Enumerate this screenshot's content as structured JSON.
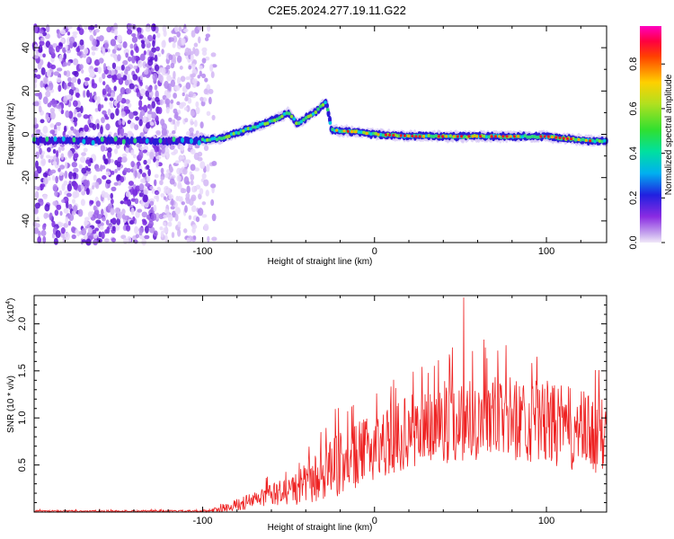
{
  "chart_data": [
    {
      "type": "heatmap",
      "title": "C2E5.2024.277.19.11.G22",
      "xlabel": "Height of straight line (km)",
      "ylabel": "Frequency (Hz)",
      "xlim": [
        -198,
        135
      ],
      "ylim": [
        -50,
        50
      ],
      "xticks": [
        -100,
        0,
        100
      ],
      "xtick_labels": [
        "-100",
        "0",
        "100"
      ],
      "yticks": [
        -40,
        -20,
        0,
        20,
        40
      ],
      "ytick_labels": [
        "-40",
        "-20",
        "0",
        "20",
        "40"
      ],
      "noise_region_x": [
        -198,
        -93
      ],
      "signal_ridge": [
        {
          "x": -105,
          "y": -3
        },
        {
          "x": -90,
          "y": -2
        },
        {
          "x": -75,
          "y": 2
        },
        {
          "x": -60,
          "y": 6
        },
        {
          "x": -50,
          "y": 10
        },
        {
          "x": -45,
          "y": 5
        },
        {
          "x": -35,
          "y": 10
        },
        {
          "x": -28,
          "y": 15
        },
        {
          "x": -25,
          "y": 2
        },
        {
          "x": -10,
          "y": 1
        },
        {
          "x": 0,
          "y": 0
        },
        {
          "x": 25,
          "y": -1
        },
        {
          "x": 50,
          "y": -1
        },
        {
          "x": 75,
          "y": -1
        },
        {
          "x": 100,
          "y": -1
        },
        {
          "x": 125,
          "y": -3
        },
        {
          "x": 135,
          "y": -3
        }
      ],
      "colorbar": {
        "label": "Normalized spectral amplitude",
        "range": [
          0,
          0.97
        ],
        "ticks": [
          0.0,
          0.2,
          0.4,
          0.6,
          0.8
        ],
        "tick_labels": [
          "0.0",
          "0.2",
          "0.4",
          "0.6",
          "0.8"
        ]
      }
    },
    {
      "type": "line",
      "xlabel": "Height of straight line (km)",
      "ylabel": "SNR (10 * v/v)",
      "scale_label": "(x10",
      "scale_exponent": "4",
      "xlim": [
        -198,
        135
      ],
      "ylim": [
        0,
        2.3
      ],
      "xticks": [
        -100,
        0,
        100
      ],
      "xtick_labels": [
        "-100",
        "0",
        "100"
      ],
      "yticks": [
        0.5,
        1.0,
        1.5,
        2.0
      ],
      "ytick_labels": [
        "0.5",
        "1.0",
        "1.5",
        "2.0"
      ],
      "color": "#ee2222",
      "envelope": [
        {
          "x": -198,
          "mean": 0.01,
          "spread": 0.01
        },
        {
          "x": -100,
          "mean": 0.01,
          "spread": 0.01
        },
        {
          "x": -90,
          "mean": 0.03,
          "spread": 0.03
        },
        {
          "x": -75,
          "mean": 0.1,
          "spread": 0.08
        },
        {
          "x": -60,
          "mean": 0.18,
          "spread": 0.12
        },
        {
          "x": -45,
          "mean": 0.25,
          "spread": 0.18
        },
        {
          "x": -30,
          "mean": 0.4,
          "spread": 0.3
        },
        {
          "x": -20,
          "mean": 0.5,
          "spread": 0.35
        },
        {
          "x": 0,
          "mean": 0.7,
          "spread": 0.35
        },
        {
          "x": 20,
          "mean": 0.85,
          "spread": 0.4
        },
        {
          "x": 40,
          "mean": 0.95,
          "spread": 0.45
        },
        {
          "x": 60,
          "mean": 1.0,
          "spread": 0.45
        },
        {
          "x": 80,
          "mean": 1.0,
          "spread": 0.45
        },
        {
          "x": 100,
          "mean": 0.95,
          "spread": 0.45
        },
        {
          "x": 120,
          "mean": 0.85,
          "spread": 0.45
        },
        {
          "x": 135,
          "mean": 0.8,
          "spread": 0.4
        }
      ],
      "peak": {
        "x": 52,
        "y": 2.28
      }
    }
  ],
  "colors": {
    "axis": "#000000",
    "line": "#ee2222",
    "noise": "#7a2be0",
    "ridge_low": "#2a1bd8",
    "ridge_mid": "#2fd67a",
    "ridge_high": "#e82020"
  }
}
